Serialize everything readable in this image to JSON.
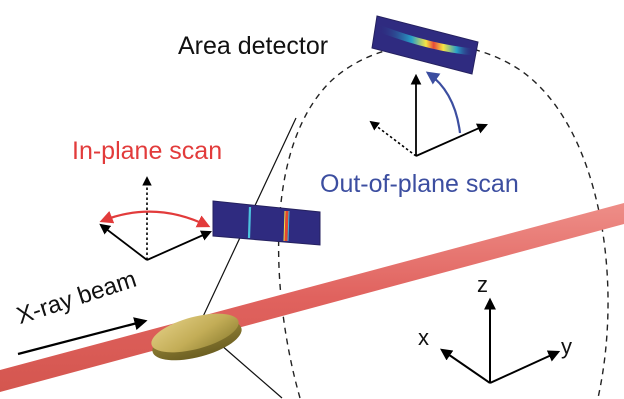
{
  "labels": {
    "area_detector": "Area detector",
    "in_plane_scan": "In-plane scan",
    "out_of_plane_scan": "Out-of-plane scan",
    "xray_beam": "X-ray beam",
    "axis_z": "z",
    "axis_x": "x",
    "axis_y": "y"
  },
  "colors": {
    "beam": "#e0625e",
    "in_plane_accent": "#e23b3b",
    "out_of_plane_accent": "#3c4ea0",
    "detector_background": "#2d2a7d",
    "sample_disk": "#c9b765",
    "text": "#111111"
  }
}
